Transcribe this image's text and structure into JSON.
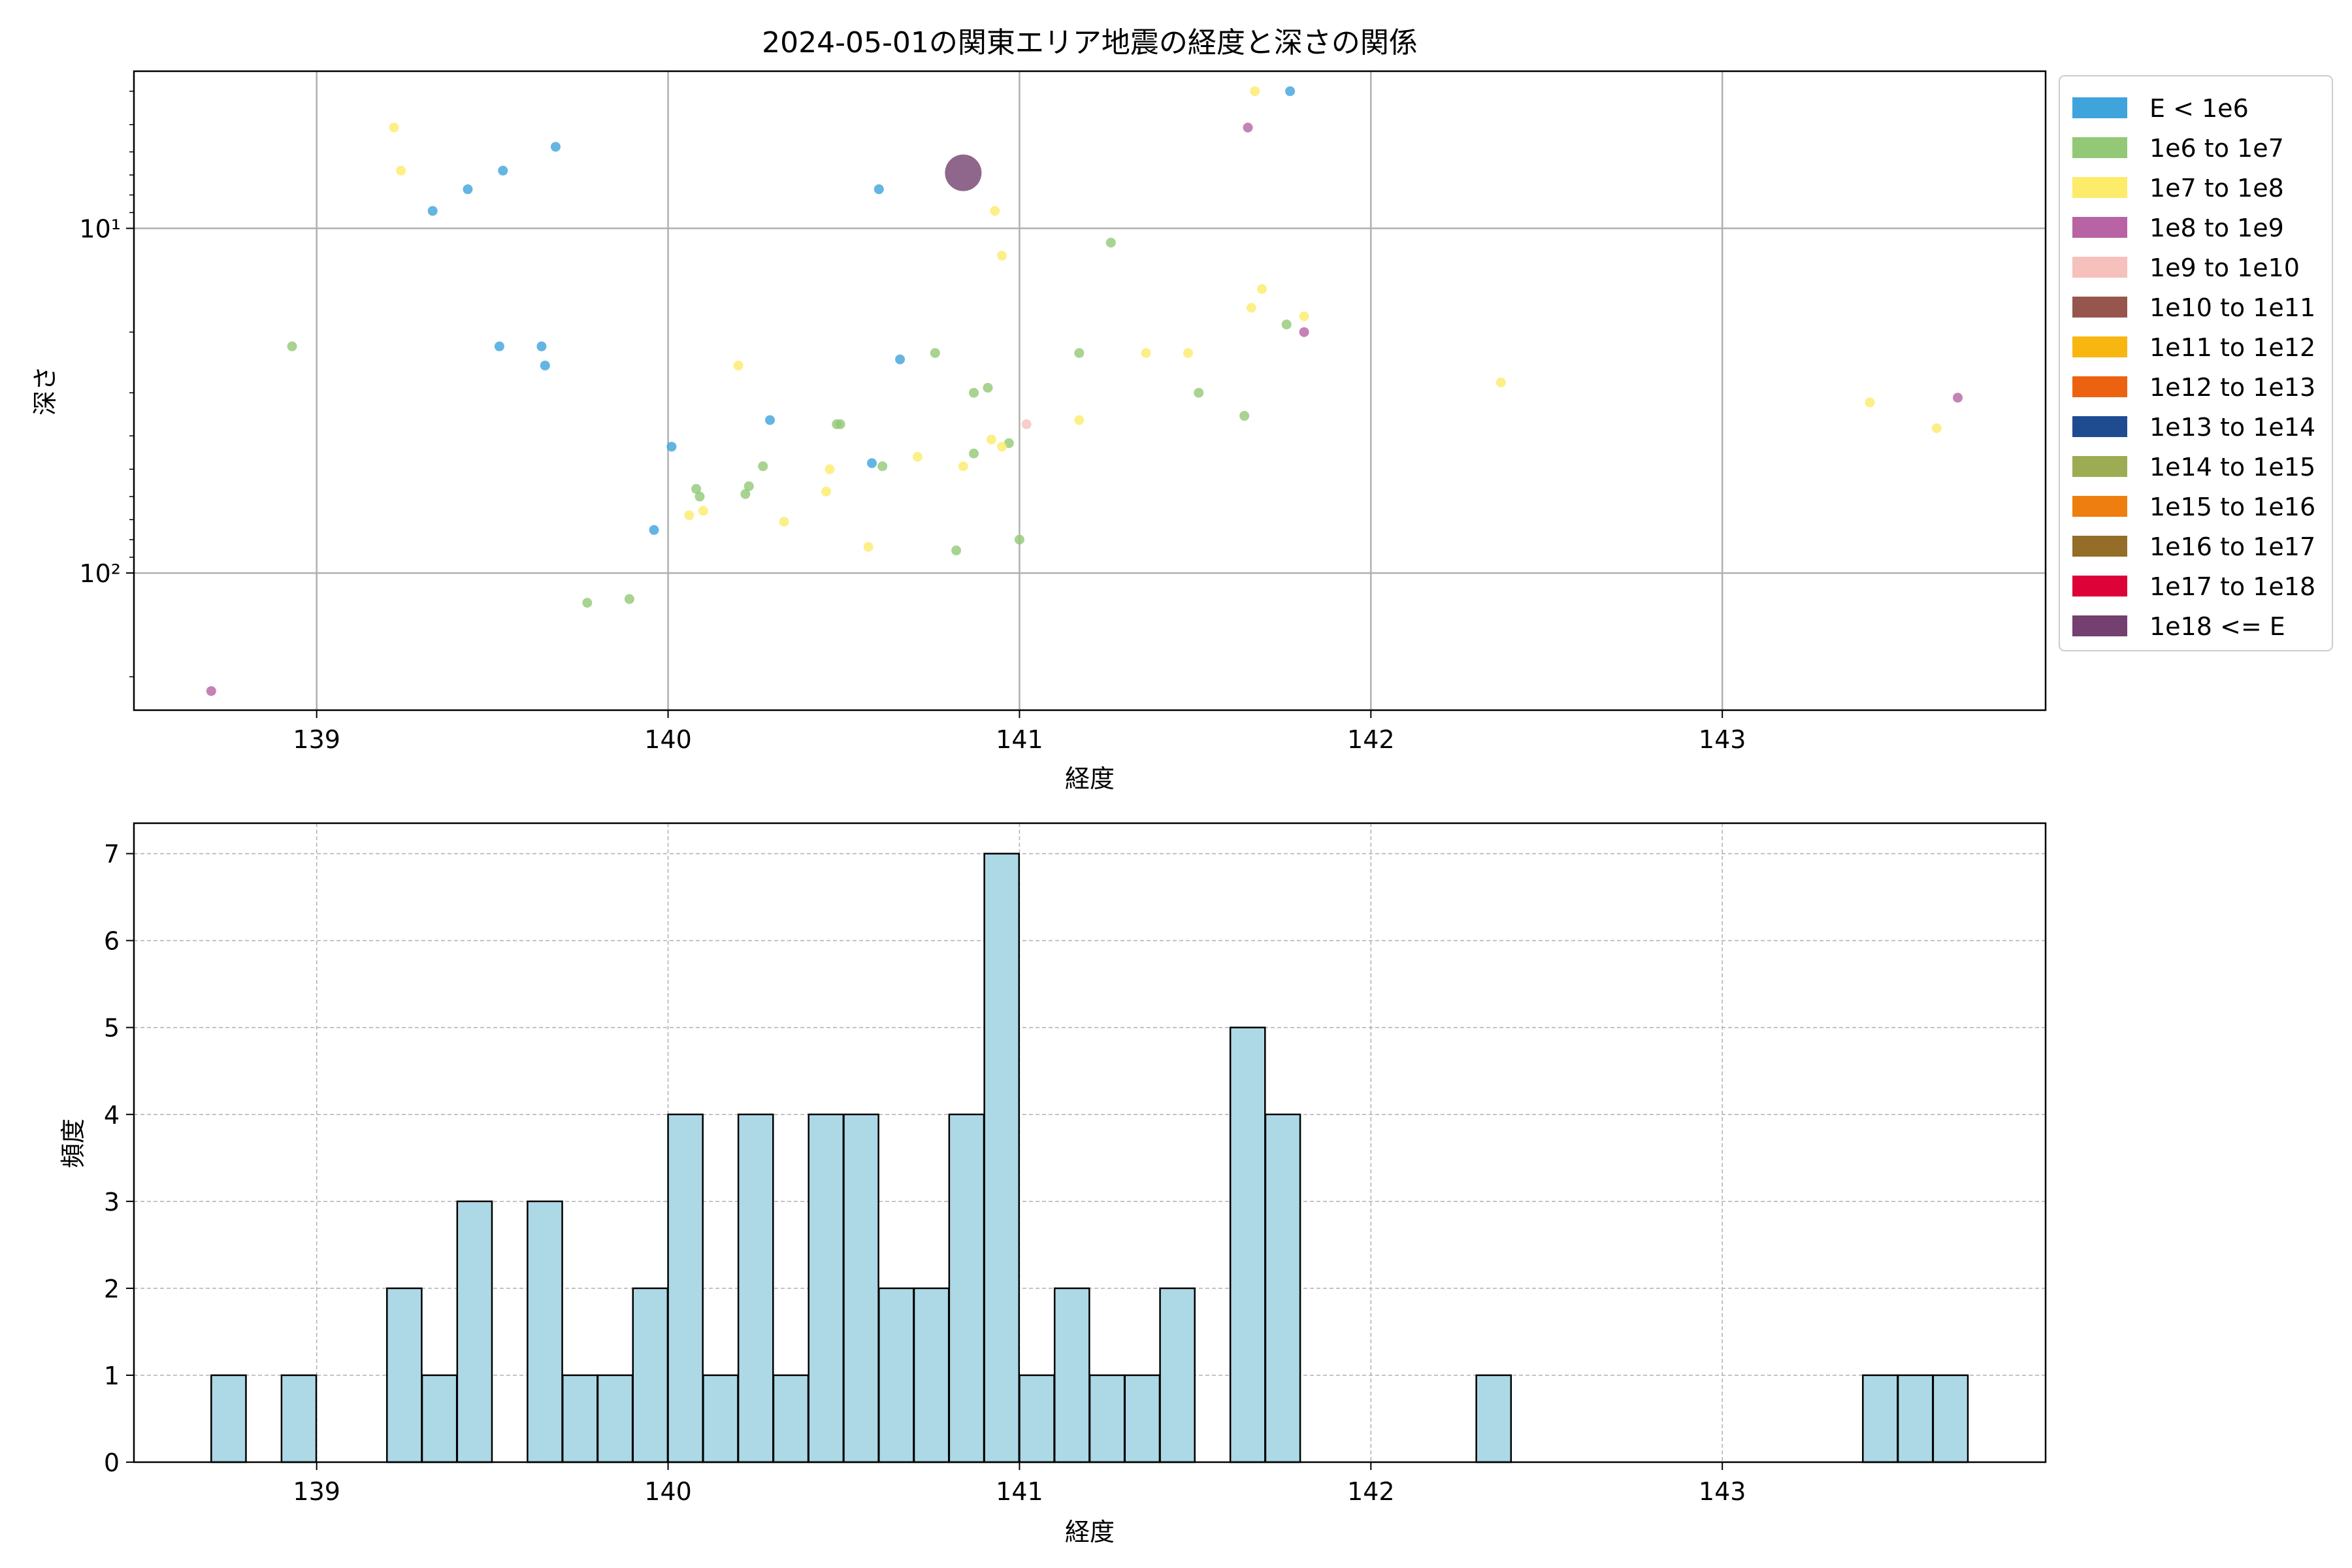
{
  "chart_data": [
    {
      "type": "scatter",
      "title": "2024-05-01の関東エリア地震の経度と深さの関係",
      "xlabel": "経度",
      "ylabel": "深さ",
      "xlim": [
        138.48,
        143.92
      ],
      "ylim": [
        250,
        3.5
      ],
      "yscale": "log",
      "y_inverted": true,
      "xticks": [
        139,
        140,
        141,
        142,
        143
      ],
      "yticks": [
        10,
        100
      ],
      "ytick_labels": [
        "10¹",
        "10²"
      ],
      "grid": true,
      "legend_position": "outside-right",
      "legend": [
        {
          "label": "E < 1e6",
          "color": "#3fa3dc"
        },
        {
          "label": "1e6 to 1e7",
          "color": "#92c876"
        },
        {
          "label": "1e7 to 1e8",
          "color": "#fdeb6a"
        },
        {
          "label": "1e8 to 1e9",
          "color": "#b763a4"
        },
        {
          "label": "1e9 to 1e10",
          "color": "#f6c0bc"
        },
        {
          "label": "1e10 to 1e11",
          "color": "#96564e"
        },
        {
          "label": "1e11 to 1e12",
          "color": "#f8b611"
        },
        {
          "label": "1e12 to 1e13",
          "color": "#ed6210"
        },
        {
          "label": "1e13 to 1e14",
          "color": "#1f4b91"
        },
        {
          "label": "1e14 to 1e15",
          "color": "#9bac53"
        },
        {
          "label": "1e15 to 1e16",
          "color": "#ee7e0f"
        },
        {
          "label": "1e16 to 1e17",
          "color": "#946e28"
        },
        {
          "label": "1e17 to 1e18",
          "color": "#dd0238"
        },
        {
          "label": "1e18 <= E",
          "color": "#73406f"
        }
      ],
      "points": [
        {
          "x": 139.33,
          "y": 8.9,
          "c": 0
        },
        {
          "x": 139.43,
          "y": 7.7,
          "c": 0
        },
        {
          "x": 139.53,
          "y": 6.8,
          "c": 0
        },
        {
          "x": 139.68,
          "y": 5.8,
          "c": 0
        },
        {
          "x": 139.52,
          "y": 22,
          "c": 0
        },
        {
          "x": 139.64,
          "y": 22,
          "c": 0
        },
        {
          "x": 139.65,
          "y": 25,
          "c": 0
        },
        {
          "x": 140.29,
          "y": 36,
          "c": 0
        },
        {
          "x": 140.01,
          "y": 43,
          "c": 0
        },
        {
          "x": 139.96,
          "y": 75,
          "c": 0
        },
        {
          "x": 140.6,
          "y": 7.7,
          "c": 0
        },
        {
          "x": 140.66,
          "y": 24,
          "c": 0
        },
        {
          "x": 140.58,
          "y": 48,
          "c": 0
        },
        {
          "x": 141.77,
          "y": 4.0,
          "c": 0
        },
        {
          "x": 138.93,
          "y": 22,
          "c": 1
        },
        {
          "x": 139.77,
          "y": 122,
          "c": 1
        },
        {
          "x": 139.89,
          "y": 119,
          "c": 1
        },
        {
          "x": 140.08,
          "y": 57,
          "c": 1
        },
        {
          "x": 140.09,
          "y": 60,
          "c": 1
        },
        {
          "x": 140.22,
          "y": 59,
          "c": 1
        },
        {
          "x": 140.23,
          "y": 56,
          "c": 1
        },
        {
          "x": 140.27,
          "y": 49,
          "c": 1
        },
        {
          "x": 140.48,
          "y": 37,
          "c": 1
        },
        {
          "x": 140.49,
          "y": 37,
          "c": 1
        },
        {
          "x": 140.61,
          "y": 49,
          "c": 1
        },
        {
          "x": 140.76,
          "y": 23,
          "c": 1
        },
        {
          "x": 140.82,
          "y": 86,
          "c": 1
        },
        {
          "x": 140.87,
          "y": 30,
          "c": 1
        },
        {
          "x": 140.87,
          "y": 45,
          "c": 1
        },
        {
          "x": 140.91,
          "y": 29,
          "c": 1
        },
        {
          "x": 140.97,
          "y": 42,
          "c": 1
        },
        {
          "x": 141.0,
          "y": 80,
          "c": 1
        },
        {
          "x": 141.17,
          "y": 23,
          "c": 1
        },
        {
          "x": 141.26,
          "y": 11,
          "c": 1
        },
        {
          "x": 141.51,
          "y": 30,
          "c": 1
        },
        {
          "x": 141.64,
          "y": 35,
          "c": 1
        },
        {
          "x": 141.76,
          "y": 19,
          "c": 1
        },
        {
          "x": 139.22,
          "y": 5.1,
          "c": 2
        },
        {
          "x": 139.24,
          "y": 6.8,
          "c": 2
        },
        {
          "x": 140.2,
          "y": 25,
          "c": 2
        },
        {
          "x": 140.06,
          "y": 68,
          "c": 2
        },
        {
          "x": 140.1,
          "y": 66,
          "c": 2
        },
        {
          "x": 140.33,
          "y": 71,
          "c": 2
        },
        {
          "x": 140.45,
          "y": 58,
          "c": 2
        },
        {
          "x": 140.46,
          "y": 50,
          "c": 2
        },
        {
          "x": 140.57,
          "y": 84,
          "c": 2
        },
        {
          "x": 140.71,
          "y": 46,
          "c": 2
        },
        {
          "x": 140.84,
          "y": 49,
          "c": 2
        },
        {
          "x": 140.92,
          "y": 41,
          "c": 2
        },
        {
          "x": 140.95,
          "y": 43,
          "c": 2
        },
        {
          "x": 140.93,
          "y": 8.9,
          "c": 2
        },
        {
          "x": 140.95,
          "y": 12,
          "c": 2
        },
        {
          "x": 141.17,
          "y": 36,
          "c": 2
        },
        {
          "x": 141.36,
          "y": 23,
          "c": 2
        },
        {
          "x": 141.48,
          "y": 23,
          "c": 2
        },
        {
          "x": 141.66,
          "y": 17,
          "c": 2
        },
        {
          "x": 141.69,
          "y": 15,
          "c": 2
        },
        {
          "x": 141.81,
          "y": 18,
          "c": 2
        },
        {
          "x": 141.67,
          "y": 4.0,
          "c": 2
        },
        {
          "x": 142.37,
          "y": 28,
          "c": 2
        },
        {
          "x": 143.42,
          "y": 32,
          "c": 2
        },
        {
          "x": 143.61,
          "y": 38,
          "c": 2
        },
        {
          "x": 138.7,
          "y": 220,
          "c": 3
        },
        {
          "x": 141.65,
          "y": 5.1,
          "c": 3
        },
        {
          "x": 141.81,
          "y": 20,
          "c": 3
        },
        {
          "x": 143.67,
          "y": 31,
          "c": 3
        },
        {
          "x": 141.02,
          "y": 37,
          "c": 4
        },
        {
          "x": 140.84,
          "y": 6.9,
          "c": 13,
          "large": true
        }
      ]
    },
    {
      "type": "bar",
      "title": "",
      "xlabel": "経度",
      "ylabel": "頻度",
      "xlim": [
        138.48,
        143.92
      ],
      "ylim": [
        0,
        7.35
      ],
      "xticks": [
        139,
        140,
        141,
        142,
        143
      ],
      "yticks": [
        0,
        1,
        2,
        3,
        4,
        5,
        6,
        7
      ],
      "grid": true,
      "bar_color": "#add8e6",
      "bin_width": 0.0988,
      "bins_start": [
        138.7,
        138.9,
        139.2,
        139.3,
        139.4,
        139.6,
        139.7,
        139.8,
        139.9,
        140.0,
        140.1,
        140.2,
        140.3,
        140.4,
        140.5,
        140.6,
        140.7,
        140.8,
        140.9,
        141.0,
        141.1,
        141.2,
        141.3,
        141.4,
        141.6,
        141.7,
        142.3,
        143.4,
        143.5,
        143.6
      ],
      "values": [
        1,
        1,
        2,
        1,
        3,
        3,
        1,
        1,
        2,
        4,
        1,
        4,
        1,
        4,
        4,
        2,
        2,
        4,
        7,
        1,
        2,
        1,
        1,
        2,
        5,
        4,
        1,
        1,
        1,
        1
      ]
    }
  ]
}
